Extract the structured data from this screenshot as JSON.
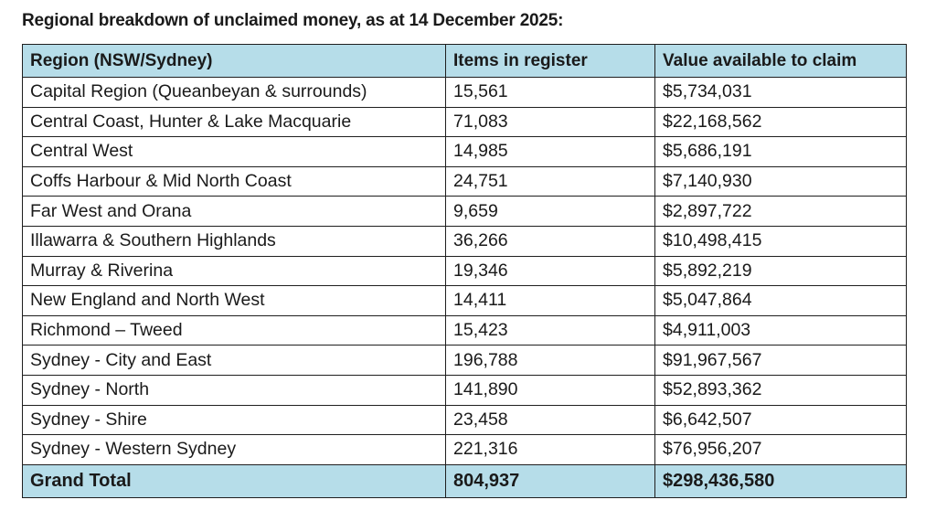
{
  "caption": "Regional breakdown of unclaimed money, as at 14 December 2025:",
  "table": {
    "headers": {
      "region": "Region (NSW/Sydney)",
      "items": "Items in register",
      "value": "Value available to claim"
    },
    "rows": [
      {
        "region": "Capital Region (Queanbeyan & surrounds)",
        "items": "15,561",
        "value": "$5,734,031"
      },
      {
        "region": "Central Coast, Hunter & Lake Macquarie",
        "items": "71,083",
        "value": "$22,168,562"
      },
      {
        "region": "Central West",
        "items": "14,985",
        "value": "$5,686,191"
      },
      {
        "region": "Coffs Harbour & Mid North Coast",
        "items": "24,751",
        "value": "$7,140,930"
      },
      {
        "region": "Far West and Orana",
        "items": "9,659",
        "value": "$2,897,722"
      },
      {
        "region": "Illawarra & Southern Highlands",
        "items": "36,266",
        "value": "$10,498,415"
      },
      {
        "region": "Murray & Riverina",
        "items": "19,346",
        "value": "$5,892,219"
      },
      {
        "region": "New England and North West",
        "items": "14,411",
        "value": "$5,047,864"
      },
      {
        "region": "Richmond – Tweed",
        "items": "15,423",
        "value": "$4,911,003"
      },
      {
        "region": "Sydney - City and East",
        "items": "196,788",
        "value": "$91,967,567"
      },
      {
        "region": "Sydney - North",
        "items": "141,890",
        "value": "$52,893,362"
      },
      {
        "region": "Sydney - Shire",
        "items": "23,458",
        "value": "$6,642,507"
      },
      {
        "region": "Sydney - Western Sydney",
        "items": "221,316",
        "value": "$76,956,207"
      }
    ],
    "total": {
      "region": "Grand Total",
      "items": "804,937",
      "value": "$298,436,580"
    }
  },
  "colors": {
    "header_fill": "#b6dde9",
    "border": "#1f1f1f"
  }
}
